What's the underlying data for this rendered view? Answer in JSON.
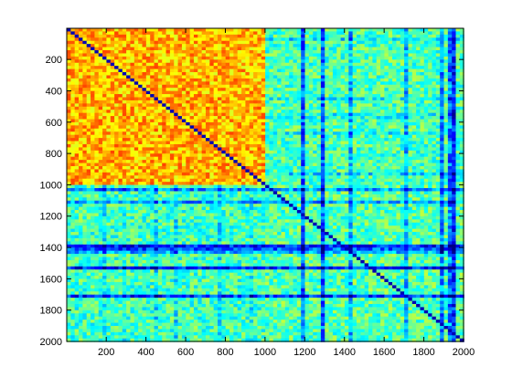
{
  "chart_data": {
    "type": "heatmap",
    "title": "",
    "xlabel": "",
    "ylabel": "",
    "xlim": [
      1,
      2000
    ],
    "ylim": [
      1,
      2000
    ],
    "y_reversed": true,
    "x_ticks": [
      200,
      400,
      600,
      800,
      1000,
      1200,
      1400,
      1600,
      1800,
      2000
    ],
    "y_ticks": [
      200,
      400,
      600,
      800,
      1000,
      1200,
      1400,
      1600,
      1800,
      2000
    ],
    "colormap": "jet",
    "grid": false,
    "blocks": [
      {
        "name": "rows 1-1000 x cols 1-1000",
        "rows": [
          1,
          1000
        ],
        "cols": [
          1,
          1000
        ],
        "level": 0.7
      },
      {
        "name": "rows 1-1000 x cols 1001-2000",
        "rows": [
          1,
          1000
        ],
        "cols": [
          1001,
          2000
        ],
        "level": 0.45
      },
      {
        "name": "rows 1001-2000 x cols 1-1000",
        "rows": [
          1001,
          2000
        ],
        "cols": [
          1,
          1000
        ],
        "level": 0.44
      },
      {
        "name": "rows 1001-2000 x cols 1001-2000",
        "rows": [
          1001,
          2000
        ],
        "cols": [
          1001,
          2000
        ],
        "level": 0.46
      }
    ],
    "diagonal_level": 0.05,
    "colors": {
      "axis": "#000000",
      "background": "#ffffff"
    }
  }
}
